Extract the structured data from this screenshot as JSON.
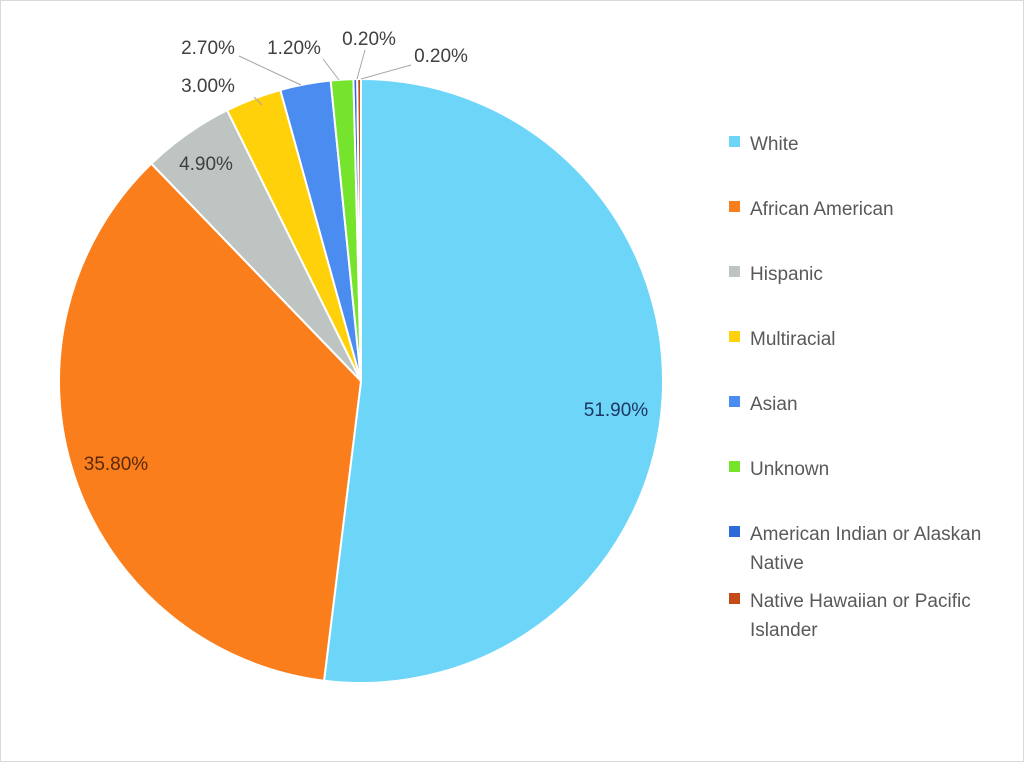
{
  "chart_data": {
    "type": "pie",
    "title": "",
    "legend_position": "right",
    "slices": [
      {
        "name": "White",
        "value": 51.9,
        "label": "51.90%",
        "color": "#6dd5f8"
      },
      {
        "name": "African American",
        "value": 35.8,
        "label": "35.80%",
        "color": "#fb7e1d"
      },
      {
        "name": "Hispanic",
        "value": 4.9,
        "label": "4.90%",
        "color": "#bec4c2"
      },
      {
        "name": "Multiracial",
        "value": 3.0,
        "label": "3.00%",
        "color": "#ffd10a"
      },
      {
        "name": "Asian",
        "value": 2.7,
        "label": "2.70%",
        "color": "#4a8cf0"
      },
      {
        "name": "Unknown",
        "value": 1.2,
        "label": "1.20%",
        "color": "#76e32c"
      },
      {
        "name": "American Indian or Alaskan Native",
        "value": 0.2,
        "label": "0.20%",
        "color": "#2f6ad9"
      },
      {
        "name": "Native Hawaiian or Pacific Islander",
        "value": 0.2,
        "label": "0.20%",
        "color": "#c44a16"
      }
    ]
  }
}
